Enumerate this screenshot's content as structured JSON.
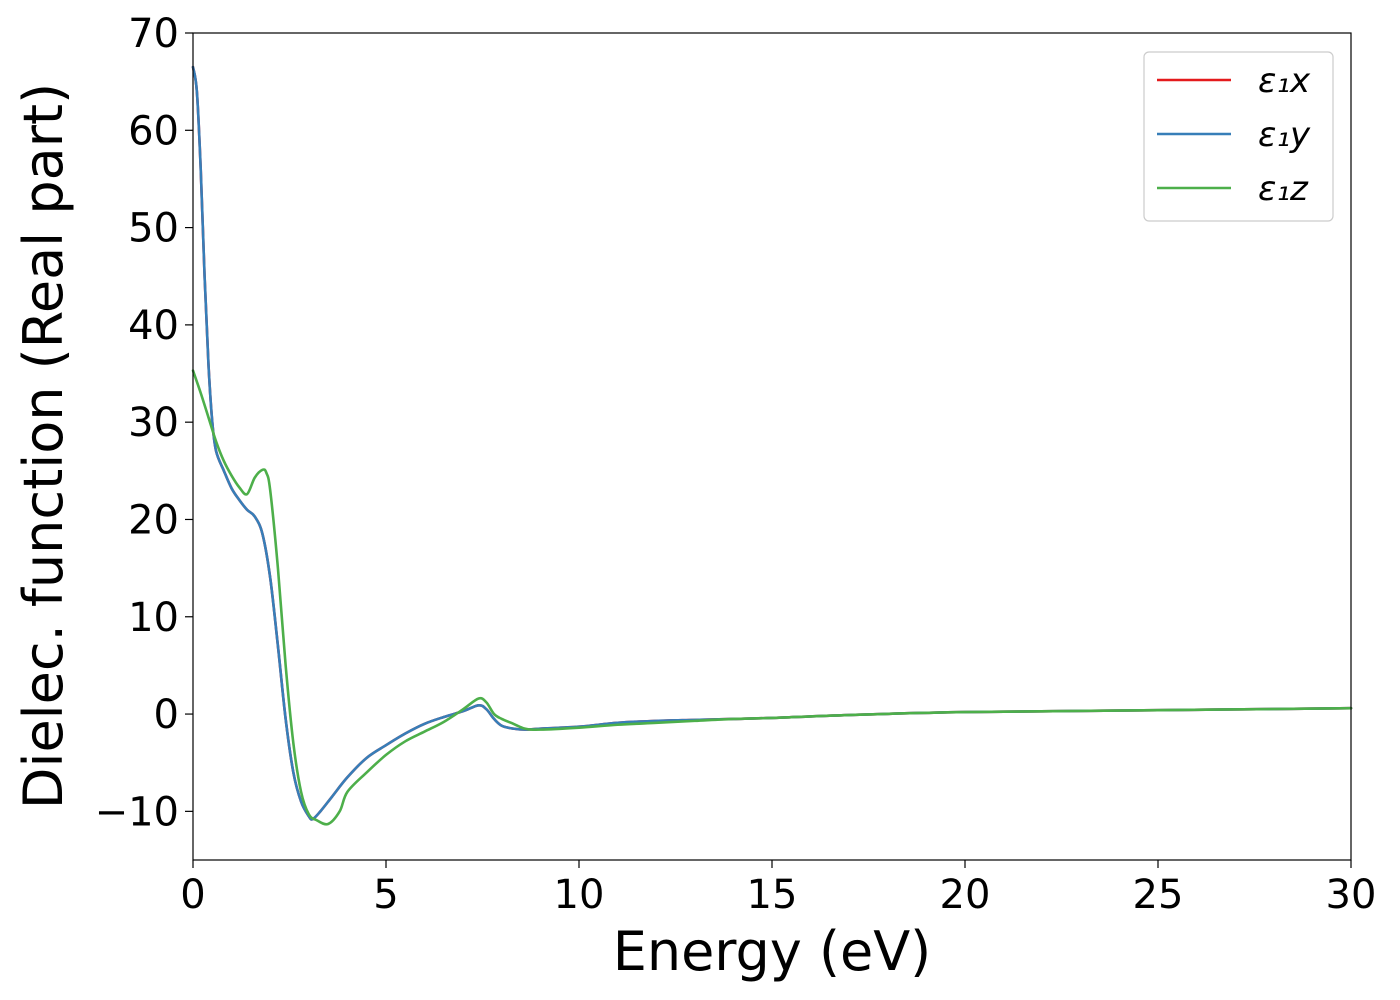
{
  "chart_data": {
    "type": "line",
    "title": "",
    "xlabel": "Energy (eV)",
    "ylabel": "Dielec. function (Real part)",
    "xlim": [
      0,
      30
    ],
    "ylim": [
      -15,
      70
    ],
    "xticks": [
      0,
      5,
      10,
      15,
      20,
      25,
      30
    ],
    "xtick_labels": [
      "0",
      "5",
      "10",
      "15",
      "20",
      "25",
      "30"
    ],
    "yticks": [
      -10,
      0,
      10,
      20,
      30,
      40,
      50,
      60,
      70
    ],
    "ytick_labels": [
      "−10",
      "0",
      "10",
      "20",
      "30",
      "40",
      "50",
      "60",
      "70"
    ],
    "grid": false,
    "legend_position": "top-right",
    "series": [
      {
        "name": "ε₁x",
        "color": "#e41a1c",
        "x": [
          0,
          0.1,
          0.2,
          0.3,
          0.4,
          0.5,
          0.6,
          0.8,
          1.0,
          1.2,
          1.4,
          1.6,
          1.8,
          2.0,
          2.2,
          2.4,
          2.6,
          2.8,
          3.0,
          3.1,
          3.3,
          3.6,
          4.0,
          4.5,
          5.0,
          5.5,
          6.0,
          6.5,
          7.0,
          7.4,
          7.6,
          7.8,
          8.0,
          8.3,
          8.6,
          9.0,
          10.0,
          11.0,
          12.0,
          13.0,
          14.0,
          15.0,
          17.0,
          20.0,
          25.0,
          30.0
        ],
        "values": [
          66.5,
          64,
          56,
          45,
          36,
          30,
          27,
          25,
          23.2,
          22,
          21,
          20.3,
          18.5,
          14,
          7,
          -0.5,
          -6,
          -9,
          -10.5,
          -10.8,
          -10,
          -8.5,
          -6.5,
          -4.5,
          -3.2,
          -2,
          -1,
          -0.3,
          0.3,
          0.9,
          0.5,
          -0.5,
          -1.2,
          -1.5,
          -1.6,
          -1.5,
          -1.3,
          -0.9,
          -0.7,
          -0.6,
          -0.5,
          -0.4,
          -0.1,
          0.2,
          0.4,
          0.6
        ]
      },
      {
        "name": "ε₁y",
        "color": "#377eb8",
        "x": [
          0,
          0.1,
          0.2,
          0.3,
          0.4,
          0.5,
          0.6,
          0.8,
          1.0,
          1.2,
          1.4,
          1.6,
          1.8,
          2.0,
          2.2,
          2.4,
          2.6,
          2.8,
          3.0,
          3.1,
          3.3,
          3.6,
          4.0,
          4.5,
          5.0,
          5.5,
          6.0,
          6.5,
          7.0,
          7.4,
          7.6,
          7.8,
          8.0,
          8.3,
          8.6,
          9.0,
          10.0,
          11.0,
          12.0,
          13.0,
          14.0,
          15.0,
          17.0,
          20.0,
          25.0,
          30.0
        ],
        "values": [
          66.5,
          64,
          56,
          45,
          36,
          30,
          27,
          25,
          23.2,
          22,
          21,
          20.3,
          18.5,
          14,
          7,
          -0.5,
          -6,
          -9,
          -10.5,
          -10.8,
          -10,
          -8.5,
          -6.5,
          -4.5,
          -3.2,
          -2,
          -1,
          -0.3,
          0.3,
          0.9,
          0.5,
          -0.5,
          -1.2,
          -1.5,
          -1.6,
          -1.5,
          -1.3,
          -0.9,
          -0.7,
          -0.6,
          -0.5,
          -0.4,
          -0.1,
          0.2,
          0.4,
          0.6
        ]
      },
      {
        "name": "ε₁z",
        "color": "#4daf4a",
        "x": [
          0,
          0.2,
          0.4,
          0.6,
          0.8,
          1.0,
          1.2,
          1.4,
          1.6,
          1.8,
          1.9,
          2.0,
          2.2,
          2.4,
          2.6,
          2.8,
          3.0,
          3.2,
          3.5,
          3.8,
          4.0,
          4.5,
          5.0,
          5.5,
          6.0,
          6.5,
          7.0,
          7.4,
          7.6,
          7.8,
          8.0,
          8.3,
          8.6,
          9.0,
          10.0,
          11.0,
          12.0,
          13.0,
          14.0,
          15.0,
          17.0,
          20.0,
          25.0,
          30.0
        ],
        "values": [
          35.3,
          33,
          30.5,
          28,
          26,
          24.5,
          23.3,
          22.6,
          24.3,
          25.1,
          24.8,
          23,
          15,
          5,
          -3,
          -8,
          -10.3,
          -10.9,
          -11.3,
          -10,
          -8,
          -6,
          -4.2,
          -2.8,
          -1.8,
          -0.8,
          0.5,
          1.6,
          1.2,
          0,
          -0.5,
          -1,
          -1.5,
          -1.6,
          -1.4,
          -1.1,
          -0.9,
          -0.7,
          -0.5,
          -0.4,
          -0.1,
          0.2,
          0.4,
          0.6
        ]
      }
    ]
  }
}
